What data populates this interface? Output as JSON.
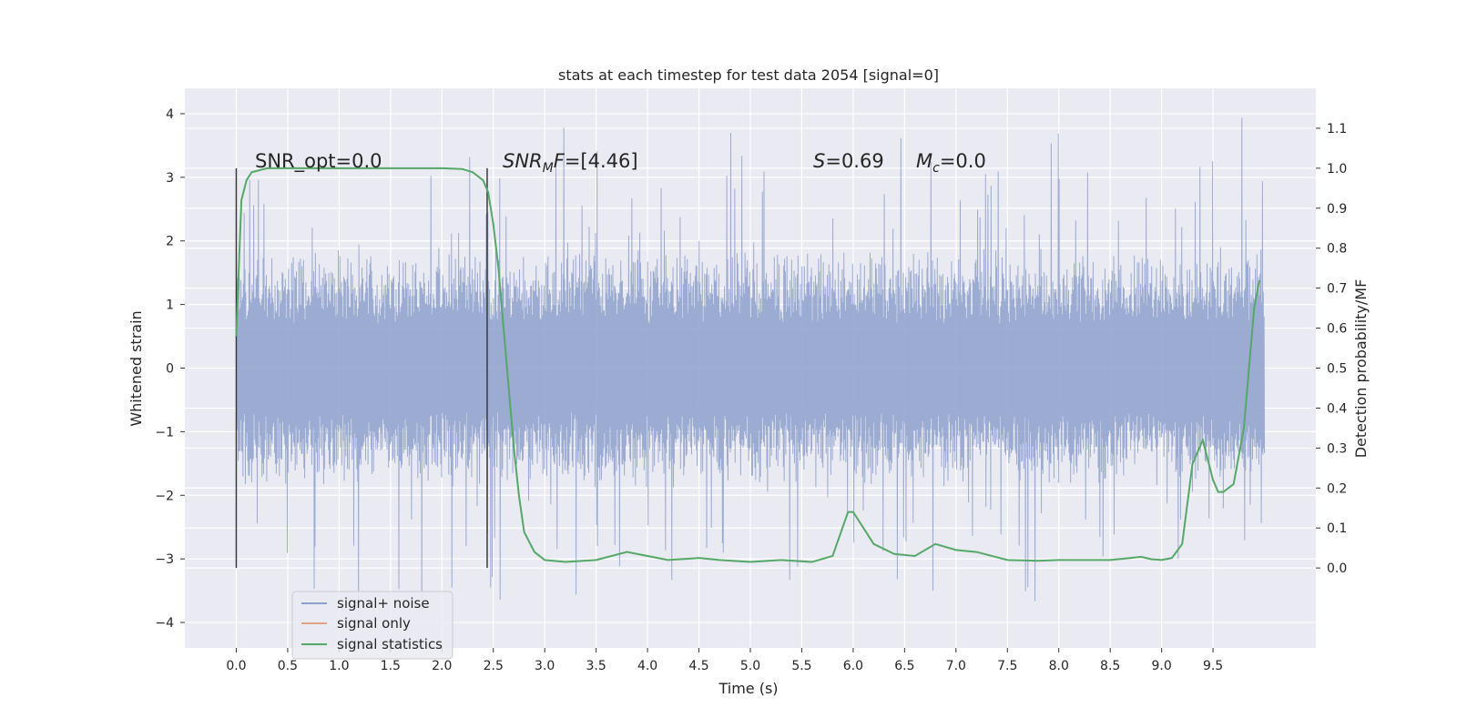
{
  "chart_data": {
    "type": "line",
    "title": "stats at each timestep for test data 2054 [signal=0]",
    "xlabel": "Time (s)",
    "ylabel_left": "Whitened strain",
    "ylabel_right": "Detection probability/MF",
    "xlim": [
      -0.5,
      10.5
    ],
    "ylim_left": [
      -4.4,
      4.4
    ],
    "ylim_right": [
      -0.2,
      1.2
    ],
    "x_ticks": [
      "0.0",
      "0.5",
      "1.0",
      "1.5",
      "2.0",
      "2.5",
      "3.0",
      "3.5",
      "4.0",
      "4.5",
      "5.0",
      "5.5",
      "6.0",
      "6.5",
      "7.0",
      "7.5",
      "8.0",
      "8.5",
      "9.0",
      "9.5"
    ],
    "y_ticks_left": [
      "4",
      "3",
      "2",
      "1",
      "0",
      "−1",
      "−2",
      "−3",
      "−4"
    ],
    "y_ticks_right": [
      "1.1",
      "1.0",
      "0.9",
      "0.8",
      "0.7",
      "0.6",
      "0.5",
      "0.4",
      "0.3",
      "0.2",
      "0.1",
      "0.0"
    ],
    "grid": true,
    "legend_position": "lower-left",
    "legend": [
      "signal+ noise",
      "signal only",
      "signal statistics"
    ],
    "colors": {
      "signal_noise": "#8da0cb",
      "signal_only": "#e1a186",
      "signal_statistics": "#55a868",
      "background": "#eaeaf2",
      "vline": "#3a3a3a"
    },
    "annotations": {
      "snr_opt": "SNR_opt=0.0",
      "snr_mf_value": "=[4.46]",
      "s_value": "=0.69",
      "mc_value": "=0.0"
    },
    "vlines_x": [
      0.0,
      2.44
    ],
    "signal_statistics": {
      "x": [
        0.0,
        0.05,
        0.1,
        0.15,
        0.3,
        0.5,
        1.0,
        1.5,
        2.0,
        2.2,
        2.3,
        2.4,
        2.45,
        2.5,
        2.55,
        2.6,
        2.65,
        2.7,
        2.75,
        2.8,
        2.9,
        3.0,
        3.2,
        3.5,
        3.8,
        4.0,
        4.2,
        4.5,
        4.7,
        5.0,
        5.3,
        5.6,
        5.8,
        5.95,
        6.0,
        6.1,
        6.2,
        6.4,
        6.6,
        6.8,
        7.0,
        7.2,
        7.5,
        7.8,
        8.0,
        8.5,
        8.7,
        8.8,
        8.9,
        9.0,
        9.1,
        9.2,
        9.3,
        9.4,
        9.5,
        9.55,
        9.6,
        9.7,
        9.8,
        9.9,
        9.95
      ],
      "y": [
        0.58,
        0.92,
        0.97,
        0.99,
        1.0,
        1.0,
        1.0,
        1.0,
        1.0,
        0.998,
        0.99,
        0.97,
        0.94,
        0.86,
        0.75,
        0.6,
        0.45,
        0.3,
        0.18,
        0.09,
        0.04,
        0.02,
        0.015,
        0.02,
        0.04,
        0.03,
        0.02,
        0.025,
        0.02,
        0.015,
        0.02,
        0.015,
        0.03,
        0.14,
        0.14,
        0.1,
        0.06,
        0.035,
        0.03,
        0.06,
        0.045,
        0.04,
        0.02,
        0.018,
        0.02,
        0.02,
        0.025,
        0.028,
        0.022,
        0.02,
        0.025,
        0.06,
        0.26,
        0.32,
        0.22,
        0.19,
        0.19,
        0.21,
        0.35,
        0.65,
        0.72
      ]
    },
    "signal_noise_envelope": {
      "x_start": 0.0,
      "x_end": 10.0,
      "typical_range": [
        -1.9,
        1.9
      ],
      "extreme_range": [
        -3.9,
        4.05
      ]
    }
  }
}
